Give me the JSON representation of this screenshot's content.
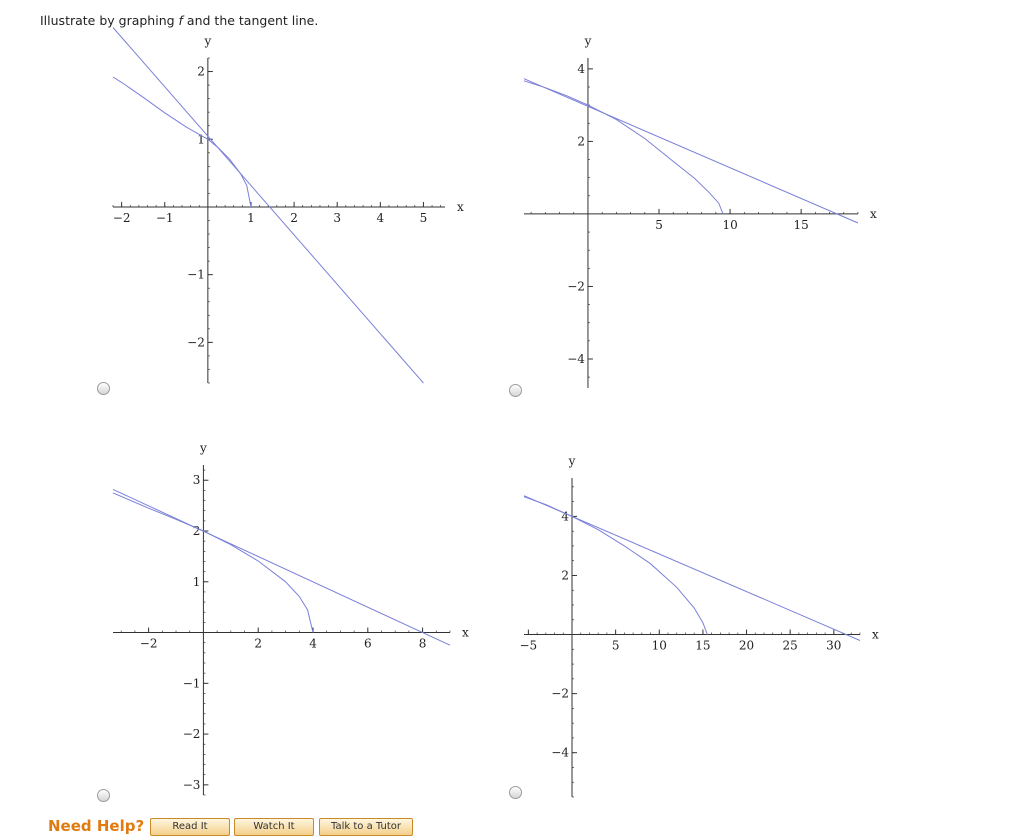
{
  "prompt": {
    "prefix": "Illustrate by graphing ",
    "func": "f",
    "suffix": " and the tangent line."
  },
  "colors": {
    "curve": "#7b80d8",
    "axis": "#333333",
    "help": "#e07b10"
  },
  "chart_data": [
    {
      "type": "line",
      "xlabel": "x",
      "ylabel": "y",
      "xlim": [
        -2.2,
        5.5
      ],
      "ylim": [
        -2.6,
        2.2
      ],
      "x_ticks": [
        -2,
        -1,
        1,
        2,
        3,
        4,
        5
      ],
      "y_ticks": [
        -2,
        -1,
        1,
        2
      ],
      "x_minor_step": 0.2,
      "y_minor_step": 0.2,
      "series": [
        {
          "kind": "curve",
          "points": [
            [
              -2.2,
              1.92
            ],
            [
              -2,
              1.84
            ],
            [
              -1.5,
              1.62
            ],
            [
              -1,
              1.39
            ],
            [
              -0.5,
              1.18
            ],
            [
              0,
              1.0
            ],
            [
              0.25,
              0.87
            ],
            [
              0.5,
              0.71
            ],
            [
              0.75,
              0.5
            ],
            [
              0.9,
              0.32
            ],
            [
              1,
              0
            ]
          ]
        },
        {
          "kind": "tangent",
          "points": [
            [
              -2.2,
              2.65
            ],
            [
              5,
              -2.6
            ]
          ]
        }
      ]
    },
    {
      "type": "line",
      "xlabel": "x",
      "ylabel": "y",
      "xlim": [
        -4.5,
        19
      ],
      "ylim": [
        -4.8,
        4.3
      ],
      "x_ticks": [
        5,
        10,
        15
      ],
      "y_ticks": [
        -4,
        -2,
        2,
        4
      ],
      "x_minor_step": 1,
      "y_minor_step": 0.5,
      "series": [
        {
          "kind": "curve",
          "points": [
            [
              -4.5,
              3.67
            ],
            [
              -3,
              3.48
            ],
            [
              -1.5,
              3.26
            ],
            [
              0,
              3.0
            ],
            [
              2,
              2.6
            ],
            [
              4,
              2.08
            ],
            [
              6,
              1.45
            ],
            [
              7.5,
              0.98
            ],
            [
              8.5,
              0.6
            ],
            [
              9.2,
              0.3
            ],
            [
              9.5,
              0
            ]
          ]
        },
        {
          "kind": "tangent",
          "points": [
            [
              -4.5,
              3.73
            ],
            [
              19,
              -0.25
            ]
          ]
        }
      ]
    },
    {
      "type": "line",
      "xlabel": "x",
      "ylabel": "y",
      "xlim": [
        -3.3,
        9
      ],
      "ylim": [
        -3.2,
        3.3
      ],
      "x_ticks": [
        -2,
        2,
        4,
        6,
        8
      ],
      "y_ticks": [
        -3,
        -2,
        -1,
        1,
        2,
        3
      ],
      "x_minor_step": 0.5,
      "y_minor_step": 0.2,
      "series": [
        {
          "kind": "curve",
          "points": [
            [
              -3.3,
              2.75
            ],
            [
              -2,
              2.45
            ],
            [
              -1,
              2.23
            ],
            [
              0,
              2.0
            ],
            [
              1,
              1.73
            ],
            [
              2,
              1.41
            ],
            [
              3,
              1.0
            ],
            [
              3.5,
              0.71
            ],
            [
              3.8,
              0.45
            ],
            [
              4,
              0
            ]
          ]
        },
        {
          "kind": "tangent",
          "points": [
            [
              -3.3,
              2.82
            ],
            [
              9,
              -0.25
            ]
          ]
        }
      ]
    },
    {
      "type": "line",
      "xlabel": "x",
      "ylabel": "y",
      "xlim": [
        -5.5,
        33
      ],
      "ylim": [
        -5.5,
        5.3
      ],
      "x_ticks": [
        -5,
        5,
        10,
        15,
        20,
        25,
        30
      ],
      "y_ticks": [
        -4,
        -2,
        2,
        4
      ],
      "x_minor_step": 1,
      "y_minor_step": 0.5,
      "series": [
        {
          "kind": "curve",
          "points": [
            [
              -5.5,
              4.67
            ],
            [
              -3,
              4.4
            ],
            [
              0,
              4.0
            ],
            [
              3,
              3.55
            ],
            [
              6,
              3.0
            ],
            [
              9,
              2.4
            ],
            [
              12,
              1.6
            ],
            [
              14,
              0.9
            ],
            [
              15,
              0.4
            ],
            [
              15.5,
              0
            ]
          ]
        },
        {
          "kind": "tangent",
          "points": [
            [
              -5.5,
              4.7
            ],
            [
              33,
              -0.2
            ]
          ]
        }
      ]
    }
  ],
  "help": {
    "title": "Need Help?",
    "buttons": [
      "Read It",
      "Watch It",
      "Talk to a Tutor"
    ]
  }
}
